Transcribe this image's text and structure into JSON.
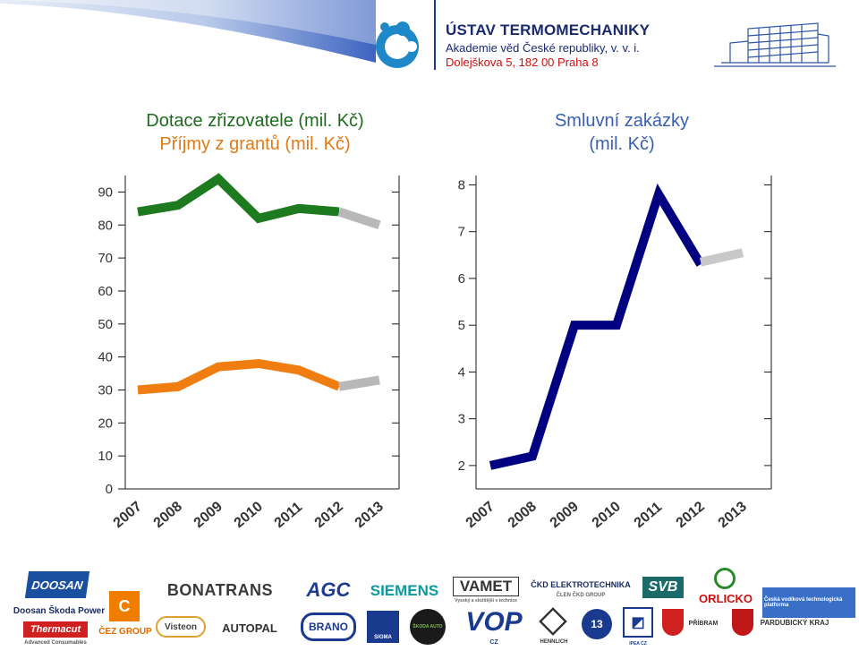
{
  "header": {
    "institute_name": "ÚSTAV TERMOMECHANIKY",
    "academy": "Akademie věd České republiky, v. v. i.",
    "address": "Dolejškova 5, 182 00 Praha 8"
  },
  "titles": {
    "left_line1": "Dotace zřizovatele (mil. Kč)",
    "left_line2": "Příjmy z grantů (mil. Kč)",
    "right_line1": "Smluvní zakázky",
    "right_line2": "(mil. Kč)"
  },
  "chart_data": [
    {
      "type": "line",
      "categories": [
        "2007",
        "2008",
        "2009",
        "2010",
        "2011",
        "2012",
        "2013"
      ],
      "yticks": [
        0,
        10,
        20,
        30,
        40,
        50,
        60,
        70,
        80,
        90
      ],
      "ylim": [
        0,
        95
      ],
      "series": [
        {
          "color": "#1e7a1e",
          "values": [
            84,
            86,
            94,
            82,
            85,
            84,
            null
          ]
        },
        {
          "color": "#b8b8b8",
          "values": [
            null,
            null,
            null,
            null,
            null,
            84,
            80
          ]
        },
        {
          "color": "#f07d10",
          "values": [
            30,
            31,
            37,
            38,
            36,
            31,
            null
          ]
        },
        {
          "color": "#b8b8b8",
          "values": [
            null,
            null,
            null,
            null,
            null,
            31,
            33
          ]
        }
      ]
    },
    {
      "type": "line",
      "categories": [
        "2007",
        "2008",
        "2009",
        "2010",
        "2011",
        "2012",
        "2013"
      ],
      "yticks": [
        2,
        3,
        4,
        5,
        6,
        7,
        8
      ],
      "ylim": [
        1.5,
        8.2
      ],
      "series": [
        {
          "color": "#000080",
          "values": [
            2.0,
            2.2,
            5.0,
            5.0,
            7.8,
            6.3,
            null
          ]
        },
        {
          "color": "#c8c8c8",
          "values": [
            null,
            null,
            null,
            null,
            null,
            6.35,
            6.55
          ]
        }
      ]
    }
  ],
  "partners": {
    "doosan": "DOOSAN",
    "doosan_skoda": "Doosan Škoda Power",
    "thermacut": "Thermacut",
    "thermacut_sub": "Advanced Consumables",
    "cez": "ČEZ GROUP",
    "bonatrans": "BONATRANS",
    "agc": "AGC",
    "visteon": "Visteon",
    "siemens": "SIEMENS",
    "autopal": "AUTOPAL",
    "brano": "BRANO",
    "vamet": "VAMET",
    "vamet_sub": "Vysoký a složitější v technice",
    "sigma": "SIGMA",
    "skoda_auto": "ŠKODA AUTO",
    "ckd": "ČKD ELEKTROTECHNIKA",
    "ckd_sub": "ČLEN ČKD GROUP",
    "vop": "VOP",
    "vop_sub": "CZ",
    "hennlich": "HENNLICH",
    "svb": "SVB",
    "ipea": "IPEA CZ",
    "orlicko": "ORLICKO",
    "pribram": "PŘÍBRAM",
    "pardubicky": "PARDUBICKÝ KRAJ",
    "platform": "Česká vodíková technologická platforma"
  }
}
